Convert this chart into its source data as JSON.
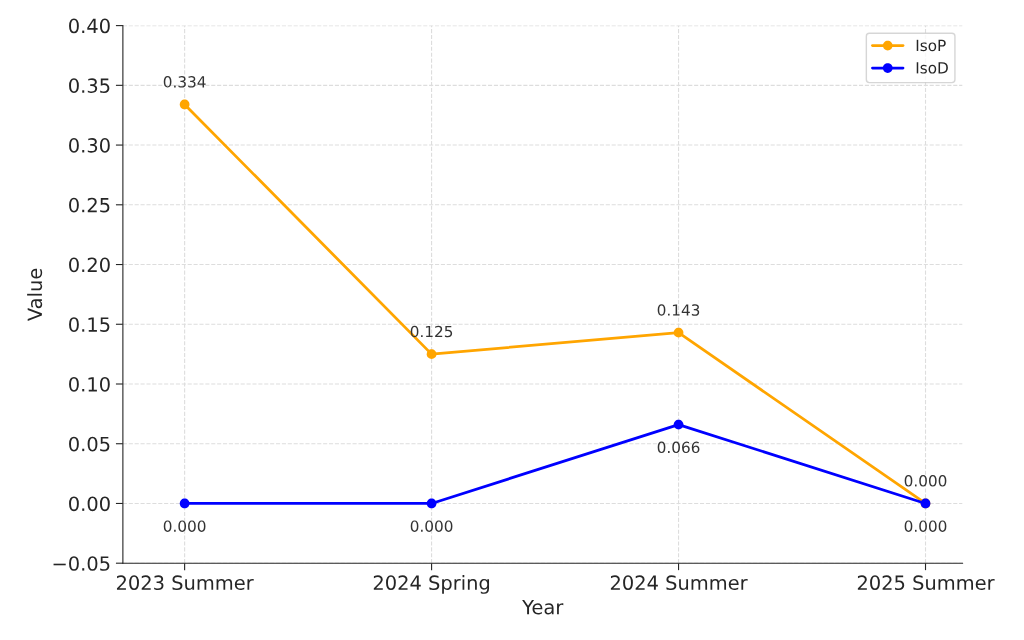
{
  "chart_data": {
    "type": "line",
    "xlabel": "Year",
    "ylabel": "Value",
    "categories": [
      "2023 Summer",
      "2024 Spring",
      "2024 Summer",
      "2025 Summer"
    ],
    "series": [
      {
        "name": "IsoP",
        "color": "#ffa500",
        "values": [
          0.334,
          0.125,
          0.143,
          0.0
        ],
        "value_labels": [
          "0.334",
          "0.125",
          "0.143",
          "0.000"
        ]
      },
      {
        "name": "IsoD",
        "color": "#0000ff",
        "values": [
          0.0,
          0.0,
          0.066,
          0.0
        ],
        "value_labels": [
          "0.000",
          "0.000",
          "0.066",
          "0.000"
        ]
      }
    ],
    "ylim": [
      -0.05,
      0.4
    ],
    "yticks": [
      {
        "value": -0.05,
        "label": "−0.05"
      },
      {
        "value": 0,
        "label": "0.00"
      },
      {
        "value": 0.05,
        "label": "0.05"
      },
      {
        "value": 0.1,
        "label": "0.10"
      },
      {
        "value": 0.15,
        "label": "0.15"
      },
      {
        "value": 0.2,
        "label": "0.20"
      },
      {
        "value": 0.25,
        "label": "0.25"
      },
      {
        "value": 0.3,
        "label": "0.30"
      },
      {
        "value": 0.35,
        "label": "0.35"
      },
      {
        "value": 0.4,
        "label": "0.40"
      }
    ],
    "grid": true,
    "legend": "top right",
    "marker": "circle",
    "line_style": "solid"
  }
}
